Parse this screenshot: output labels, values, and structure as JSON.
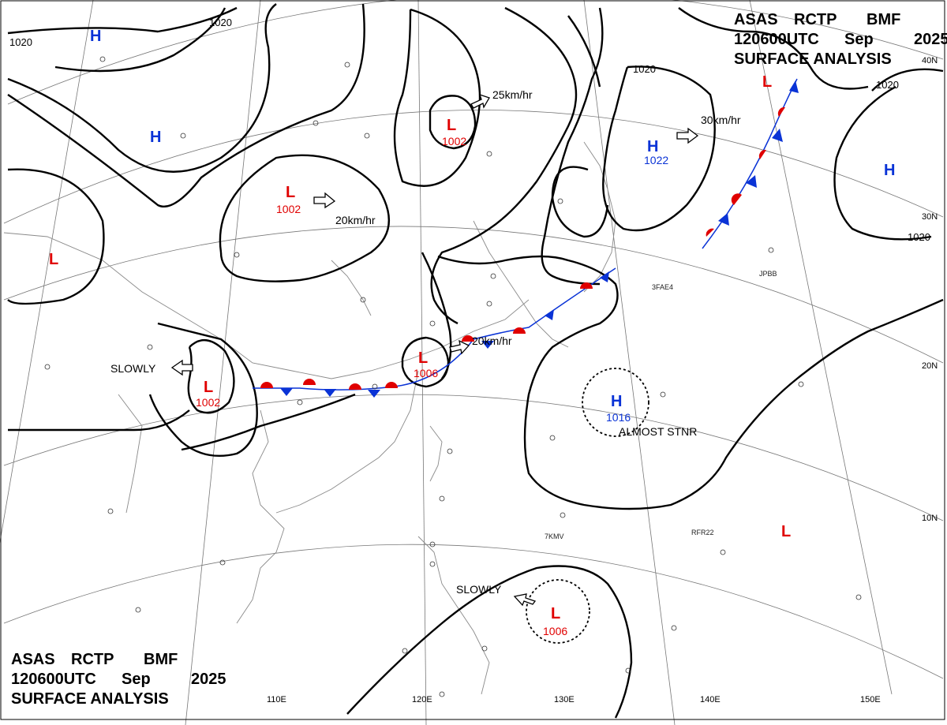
{
  "header_top": {
    "agency": "ASAS",
    "station": "RCTP",
    "office": "BMF",
    "time": "120600UTC",
    "month": "Sep",
    "year": "2025",
    "product": "SURFACE ANALYSIS"
  },
  "header_bottom": {
    "agency": "ASAS",
    "station": "RCTP",
    "office": "BMF",
    "time": "120600UTC",
    "month": "Sep",
    "year": "2025",
    "product": "SURFACE ANALYSIS"
  },
  "longitude_labels": [
    "110E",
    "120E",
    "130E",
    "140E",
    "150E"
  ],
  "latitude_labels": [
    "40N",
    "30N",
    "20N",
    "10N"
  ],
  "pressure_centers": [
    {
      "type": "L",
      "pressure": "1002",
      "motion": "25km/hr"
    },
    {
      "type": "L",
      "pressure": "1002",
      "motion": "20km/hr"
    },
    {
      "type": "L",
      "pressure": "1006",
      "motion": "20km/hr"
    },
    {
      "type": "L",
      "pressure": "1002",
      "motion": "SLOWLY"
    },
    {
      "type": "L",
      "pressure": "1006",
      "motion": "SLOWLY"
    },
    {
      "type": "H",
      "pressure": "1022",
      "motion": "30km/hr"
    },
    {
      "type": "H",
      "pressure": "1016",
      "motion": "ALMOST STNR"
    },
    {
      "type": "H",
      "pressure": "",
      "motion": ""
    },
    {
      "type": "H",
      "pressure": "",
      "motion": ""
    },
    {
      "type": "H",
      "pressure": "",
      "motion": ""
    },
    {
      "type": "L",
      "pressure": "",
      "motion": ""
    },
    {
      "type": "L",
      "pressure": "",
      "motion": ""
    },
    {
      "type": "L",
      "pressure": "",
      "motion": ""
    }
  ],
  "isobar_labels": [
    "1020",
    "1020",
    "1020",
    "1020",
    "1020"
  ],
  "fronts": [
    {
      "type": "stationary"
    },
    {
      "type": "stationary"
    }
  ],
  "station_labels": [
    "3FAE4",
    "JPBB",
    "RFR22",
    "7KMV"
  ],
  "colors": {
    "low": "#e00000",
    "high": "#0a33d6",
    "isobar": "#000000",
    "grid": "#777777",
    "coast": "#8a8a8a"
  }
}
